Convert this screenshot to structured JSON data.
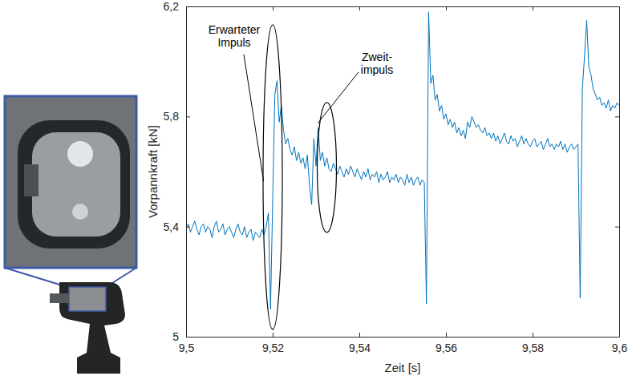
{
  "chart_data": {
    "type": "line",
    "x_label": "Zeit [s]",
    "y_label": "Vorpannkraft [kN]",
    "color": "#0072bd",
    "grid": false,
    "xlim": [
      9.5,
      9.6
    ],
    "xticks": [
      {
        "value": 9.5,
        "label": "9,5"
      },
      {
        "value": 9.52,
        "label": "9,52"
      },
      {
        "value": 9.54,
        "label": "9,54"
      },
      {
        "value": 9.56,
        "label": "9,56"
      },
      {
        "value": 9.58,
        "label": "9,58"
      },
      {
        "value": 9.6,
        "label": "9,6"
      }
    ],
    "ylim": [
      5,
      6.2
    ],
    "yticks": [
      5,
      {
        "value": 5.4,
        "label": "5,4"
      },
      {
        "value": 5.8,
        "label": "5,8"
      },
      {
        "value": 6.2,
        "label": "6,2"
      }
    ],
    "annotations": [
      {
        "text": [
          "Erwarteter",
          "Impuls"
        ],
        "x": 9.52,
        "y": 5.58
      },
      {
        "text": [
          "Zweit-",
          "impuls"
        ],
        "x": 9.5325,
        "y": 5.615
      }
    ],
    "x": [
      9.5,
      9.5005,
      9.501,
      9.5015,
      9.502,
      9.5025,
      9.503,
      9.5035,
      9.504,
      9.5045,
      9.505,
      9.5055,
      9.506,
      9.5065,
      9.507,
      9.5075,
      9.508,
      9.5085,
      9.509,
      9.5095,
      9.51,
      9.5105,
      9.511,
      9.5115,
      9.512,
      9.5125,
      9.513,
      9.5135,
      9.514,
      9.5145,
      9.515,
      9.5155,
      9.516,
      9.5165,
      9.517,
      9.5175,
      9.518,
      9.5185,
      9.519,
      9.5195,
      9.52,
      9.5205,
      9.521,
      9.5215,
      9.522,
      9.5225,
      9.523,
      9.5235,
      9.524,
      9.5245,
      9.525,
      9.5255,
      9.526,
      9.5265,
      9.527,
      9.5275,
      9.528,
      9.5285,
      9.529,
      9.5295,
      9.53,
      9.5305,
      9.531,
      9.5315,
      9.532,
      9.5325,
      9.533,
      9.5335,
      9.534,
      9.5345,
      9.535,
      9.5355,
      9.536,
      9.5365,
      9.537,
      9.5375,
      9.538,
      9.5385,
      9.539,
      9.5395,
      9.54,
      9.5405,
      9.541,
      9.5415,
      9.542,
      9.5425,
      9.543,
      9.5435,
      9.544,
      9.5445,
      9.545,
      9.5455,
      9.546,
      9.5465,
      9.547,
      9.5475,
      9.548,
      9.5485,
      9.549,
      9.5495,
      9.55,
      9.5505,
      9.551,
      9.5515,
      9.552,
      9.5525,
      9.553,
      9.5535,
      9.554,
      9.5545,
      9.555,
      9.5555,
      9.556,
      9.5565,
      9.557,
      9.5575,
      9.558,
      9.5585,
      9.559,
      9.5595,
      9.56,
      9.5605,
      9.561,
      9.5615,
      9.562,
      9.5625,
      9.563,
      9.5635,
      9.564,
      9.5645,
      9.565,
      9.5655,
      9.566,
      9.5665,
      9.567,
      9.5675,
      9.568,
      9.5685,
      9.569,
      9.5695,
      9.57,
      9.5705,
      9.571,
      9.5715,
      9.572,
      9.5725,
      9.573,
      9.5735,
      9.574,
      9.5745,
      9.575,
      9.5755,
      9.576,
      9.5765,
      9.577,
      9.5775,
      9.578,
      9.5785,
      9.579,
      9.5795,
      9.58,
      9.5805,
      9.581,
      9.5815,
      9.582,
      9.5825,
      9.583,
      9.5835,
      9.584,
      9.5845,
      9.585,
      9.5855,
      9.586,
      9.5865,
      9.587,
      9.5875,
      9.588,
      9.5885,
      9.589,
      9.5895,
      9.59,
      9.5905,
      9.591,
      9.5915,
      9.592,
      9.5925,
      9.593,
      9.5935,
      9.594,
      9.5945,
      9.595,
      9.5955,
      9.596,
      9.5965,
      9.597,
      9.5975,
      9.598,
      9.5985,
      9.599,
      9.5995,
      9.6
    ],
    "values": [
      5.39,
      5.41,
      5.38,
      5.4,
      5.42,
      5.39,
      5.37,
      5.4,
      5.41,
      5.38,
      5.4,
      5.39,
      5.36,
      5.4,
      5.42,
      5.38,
      5.39,
      5.41,
      5.37,
      5.39,
      5.4,
      5.38,
      5.36,
      5.39,
      5.41,
      5.38,
      5.37,
      5.4,
      5.36,
      5.38,
      5.39,
      5.35,
      5.38,
      5.37,
      5.36,
      5.39,
      5.37,
      5.4,
      5.45,
      5.1,
      5.5,
      5.88,
      5.93,
      5.78,
      5.84,
      5.75,
      5.7,
      5.72,
      5.68,
      5.66,
      5.69,
      5.64,
      5.67,
      5.63,
      5.65,
      5.61,
      5.66,
      5.55,
      5.48,
      5.72,
      5.62,
      5.76,
      5.64,
      5.67,
      5.62,
      5.65,
      5.61,
      5.6,
      5.63,
      5.61,
      5.59,
      5.62,
      5.6,
      5.58,
      5.61,
      5.59,
      5.62,
      5.6,
      5.58,
      5.61,
      5.59,
      5.57,
      5.6,
      5.58,
      5.61,
      5.57,
      5.59,
      5.58,
      5.6,
      5.56,
      5.59,
      5.57,
      5.58,
      5.6,
      5.56,
      5.58,
      5.57,
      5.59,
      5.56,
      5.58,
      5.57,
      5.55,
      5.59,
      5.56,
      5.58,
      5.55,
      5.57,
      5.58,
      5.55,
      5.57,
      5.56,
      5.12,
      6.18,
      5.92,
      5.95,
      5.86,
      5.88,
      5.82,
      5.84,
      5.79,
      5.81,
      5.77,
      5.79,
      5.76,
      5.78,
      5.74,
      5.76,
      5.73,
      5.75,
      5.72,
      5.78,
      5.76,
      5.8,
      5.78,
      5.76,
      5.77,
      5.75,
      5.74,
      5.76,
      5.73,
      5.74,
      5.72,
      5.74,
      5.71,
      5.73,
      5.7,
      5.72,
      5.74,
      5.71,
      5.7,
      5.73,
      5.71,
      5.72,
      5.69,
      5.71,
      5.73,
      5.7,
      5.72,
      5.7,
      5.69,
      5.71,
      5.72,
      5.69,
      5.7,
      5.71,
      5.68,
      5.7,
      5.72,
      5.69,
      5.7,
      5.68,
      5.7,
      5.69,
      5.71,
      5.68,
      5.7,
      5.67,
      5.69,
      5.7,
      5.68,
      5.69,
      5.7,
      5.14,
      5.9,
      6.02,
      6.15,
      5.98,
      5.95,
      5.9,
      5.88,
      5.86,
      5.87,
      5.84,
      5.85,
      5.83,
      5.86,
      5.82,
      5.84,
      5.83,
      5.85,
      5.84
    ]
  }
}
